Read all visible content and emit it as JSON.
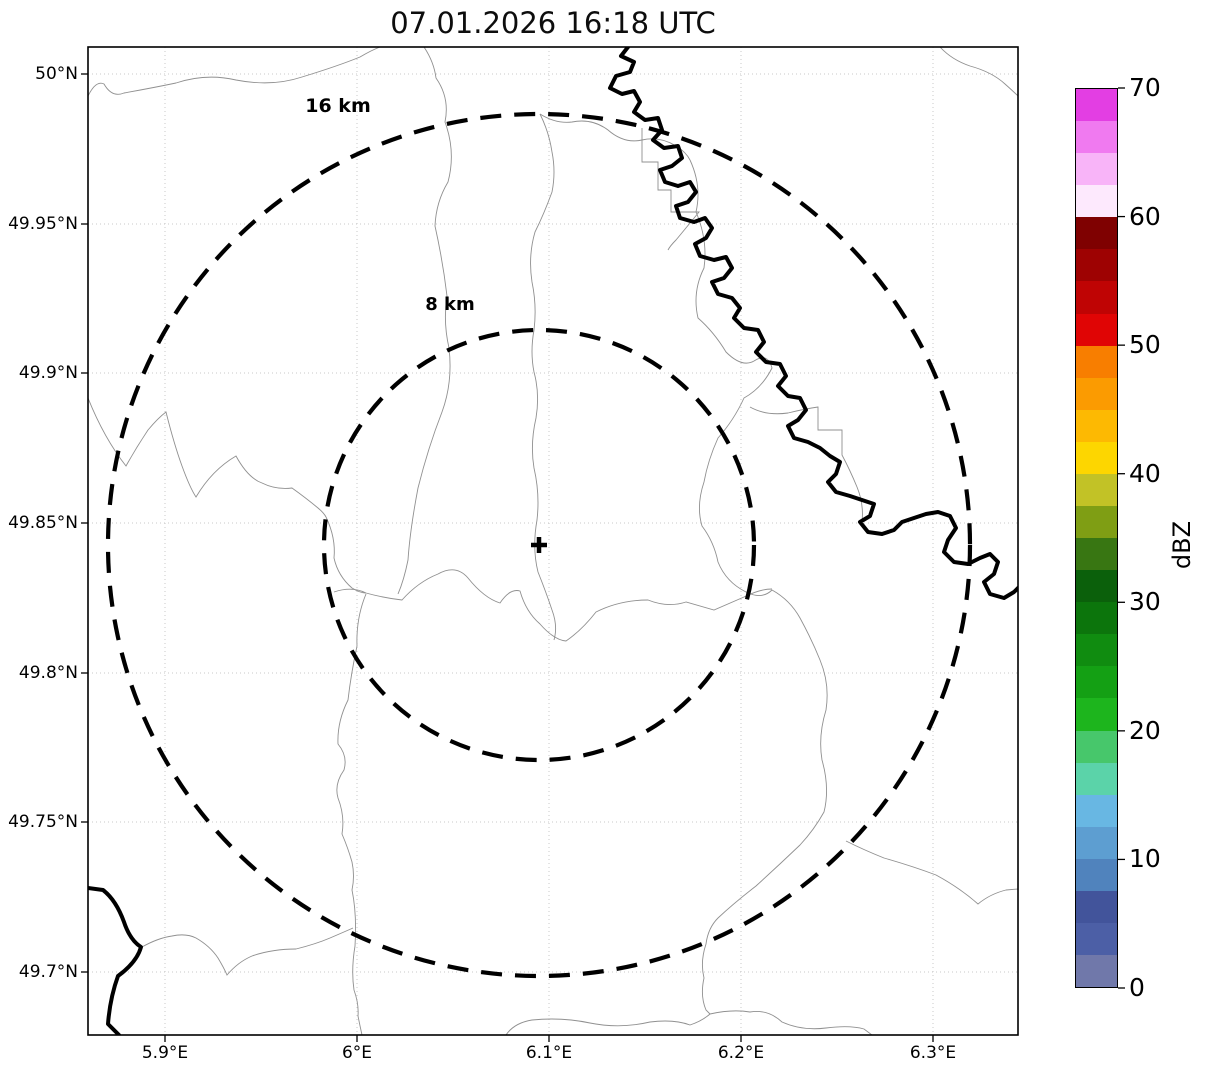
{
  "title": "07.01.2026 16:18 UTC",
  "map": {
    "x_ticks": [
      "5.9°E",
      "6°E",
      "6.1°E",
      "6.2°E",
      "6.3°E"
    ],
    "y_ticks": [
      "50°N",
      "49.95°N",
      "49.9°N",
      "49.85°N",
      "49.8°N",
      "49.75°N",
      "49.7°N"
    ],
    "range_ring_outer_label": "16 km",
    "range_ring_inner_label": "8 km",
    "center_marker": "+"
  },
  "colorbar": {
    "label": "dBZ",
    "tick_labels_top_to_bottom": [
      "70",
      "60",
      "50",
      "40",
      "30",
      "20",
      "10",
      "0"
    ],
    "value_min": 0,
    "value_max": 70,
    "segment_step_dbz": 2.5,
    "segment_colors_top_to_bottom": [
      "#e33ee3",
      "#f07af0",
      "#f8b4f8",
      "#fde9fd",
      "#7f0101",
      "#9e0202",
      "#bf0404",
      "#e00505",
      "#f87e00",
      "#fb9b01",
      "#fdb902",
      "#fdd600",
      "#c2c226",
      "#7f9e14",
      "#387612",
      "#0b600b",
      "#0c750c",
      "#108c10",
      "#14a014",
      "#1db51d",
      "#47c76b",
      "#5bd3a9",
      "#68b7e3",
      "#5d9ed1",
      "#5083bd",
      "#42549b",
      "#4c5fa6",
      "#7078aa"
    ]
  },
  "chart_data": {
    "type": "heatmap",
    "title": "07.01.2026 16:18 UTC",
    "x_tick_labels": [
      "5.9°E",
      "6°E",
      "6.1°E",
      "6.2°E",
      "6.3°E"
    ],
    "y_tick_labels": [
      "50°N",
      "49.95°N",
      "49.9°N",
      "49.85°N",
      "49.8°N",
      "49.75°N",
      "49.7°N"
    ],
    "grid": true,
    "values": [],
    "no_reflectivity_echoes_visible": true,
    "colorbar": {
      "label": "dBZ",
      "range": [
        0,
        70
      ],
      "tick_interval": 10,
      "segment_interval": 2.5,
      "position": "right"
    },
    "annotations": [
      {
        "text": "16 km",
        "meaning": "outer range ring radius"
      },
      {
        "text": "8 km",
        "meaning": "inner range ring radius"
      },
      {
        "text": "+",
        "meaning": "radar site marker at ring center"
      }
    ]
  }
}
